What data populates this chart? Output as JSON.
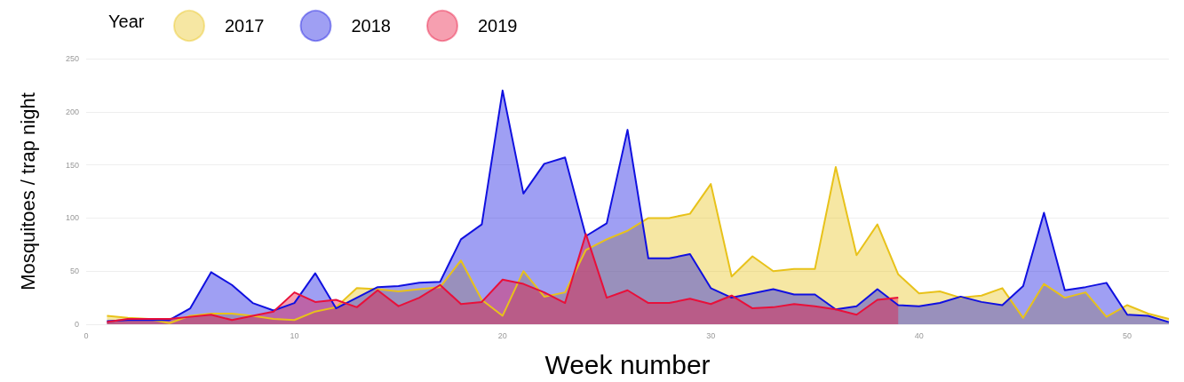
{
  "chart_data": {
    "type": "area",
    "xlabel": "Week number",
    "ylabel": "Mosquitoes / trap night",
    "legend_title": "Year",
    "legend": "top left",
    "grid": "y",
    "marker": "none",
    "xlim": [
      0,
      52
    ],
    "xticks": [
      0,
      10,
      20,
      30,
      40,
      50
    ],
    "ylim": [
      0,
      250
    ],
    "yticks": [
      0,
      50,
      100,
      150,
      200,
      250
    ],
    "x": [
      1,
      2,
      3,
      4,
      5,
      6,
      7,
      8,
      9,
      10,
      11,
      12,
      13,
      14,
      15,
      16,
      17,
      18,
      19,
      20,
      21,
      22,
      23,
      24,
      25,
      26,
      27,
      28,
      29,
      30,
      31,
      32,
      33,
      34,
      35,
      36,
      37,
      38,
      39,
      40,
      41,
      42,
      43,
      44,
      45,
      46,
      47,
      48,
      49,
      50,
      51,
      52
    ],
    "series": [
      {
        "name": "2017",
        "color": "#e8c21a",
        "values": [
          8,
          6,
          5,
          1,
          8,
          10,
          10,
          8,
          5,
          4,
          12,
          16,
          34,
          33,
          31,
          33,
          35,
          60,
          23,
          8,
          50,
          26,
          30,
          70,
          80,
          88,
          100,
          100,
          104,
          132,
          45,
          64,
          50,
          52,
          52,
          148,
          65,
          94,
          47,
          29,
          31,
          25,
          27,
          34,
          6,
          38,
          25,
          30,
          7,
          18,
          10,
          5
        ]
      },
      {
        "name": "2018",
        "color": "#1010e0",
        "values": [
          3,
          4,
          4,
          4,
          15,
          49,
          37,
          20,
          13,
          20,
          48,
          15,
          25,
          35,
          36,
          39,
          40,
          80,
          94,
          220,
          123,
          151,
          157,
          83,
          95,
          183,
          62,
          62,
          66,
          34,
          25,
          29,
          33,
          28,
          28,
          14,
          17,
          33,
          18,
          17,
          20,
          26,
          21,
          18,
          36,
          105,
          32,
          35,
          39,
          9,
          8,
          2
        ]
      },
      {
        "name": "2019",
        "color": "#e8103a",
        "values": [
          2,
          5,
          5,
          5,
          7,
          9,
          4,
          8,
          12,
          30,
          21,
          23,
          16,
          32,
          17,
          25,
          37,
          19,
          21,
          42,
          38,
          30,
          20,
          85,
          25,
          32,
          20,
          20,
          24,
          19,
          27,
          15,
          16,
          19,
          17,
          14,
          9,
          23,
          25,
          null,
          null,
          null,
          null,
          null,
          null,
          null,
          null,
          null,
          null,
          null,
          null,
          null
        ]
      }
    ]
  }
}
